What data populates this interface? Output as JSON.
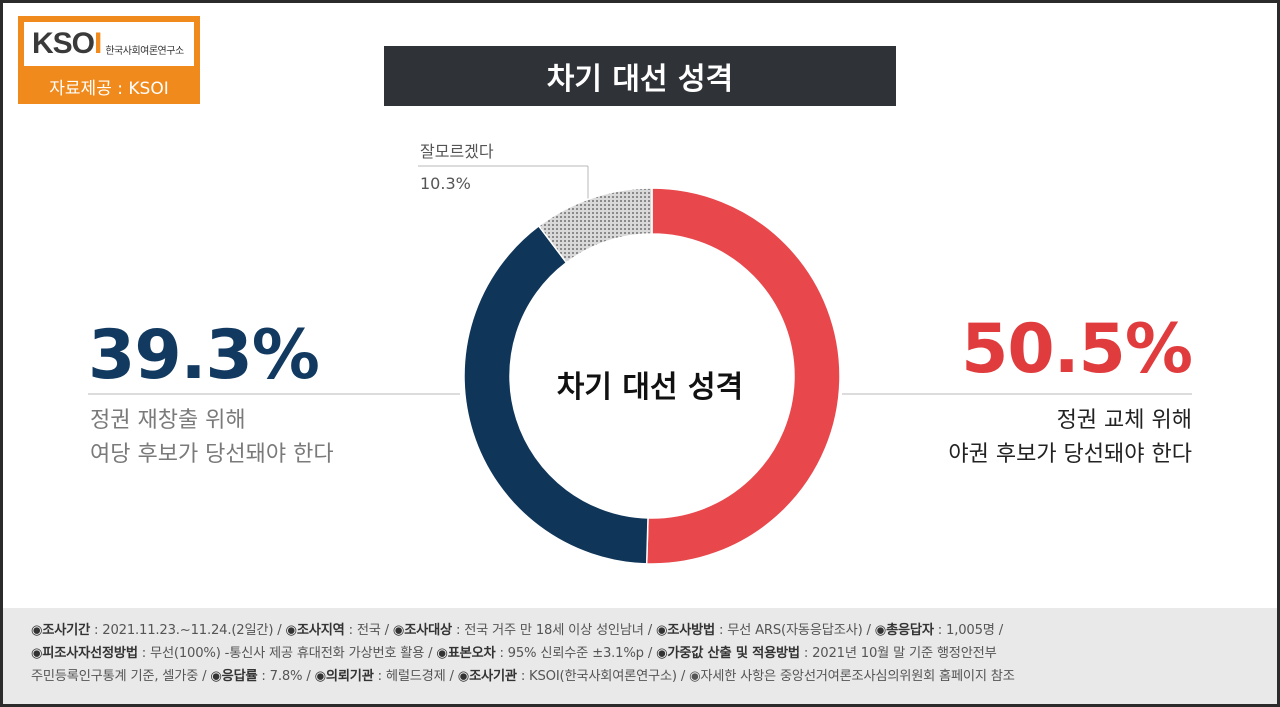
{
  "logo": {
    "brand": "KSOI",
    "org_name": "한국사회여론연구소",
    "source_label": "자료제공 : KSOI"
  },
  "title": "차기 대선 성격",
  "chart_data": {
    "type": "pie",
    "center_label": "차기 대선 성격",
    "slices": [
      {
        "label": "정권 교체 위해 야권 후보가 당선돼야 한다",
        "value": 50.5,
        "color": "#e8474b"
      },
      {
        "label": "정권 재창출 위해 여당 후보가 당선돼야 한다",
        "value": 39.3,
        "color": "#0f3559"
      },
      {
        "label": "잘모르겠다",
        "value": 10.3,
        "color": "#bdbdbd"
      }
    ],
    "labels": {
      "left_pct": "39.3%",
      "left_line1": "정권 재창출 위해",
      "left_line2": "여당 후보가 당선돼야 한다",
      "right_pct": "50.5%",
      "right_line1": "정권 교체 위해",
      "right_line2": "야권 후보가 당선돼야 한다",
      "unknown_label": "잘모르겠다",
      "unknown_pct": "10.3%"
    }
  },
  "footer": {
    "l1": [
      {
        "k": "◉조사기간",
        "v": " : 2021.11.23.~11.24.(2일간)  / "
      },
      {
        "k": "◉조사지역",
        "v": " : 전국 / "
      },
      {
        "k": "◉조사대상",
        "v": " : 전국 거주 만 18세 이상 성인남녀 / "
      },
      {
        "k": "◉조사방법",
        "v": " : 무선 ARS(자동응답조사) / "
      },
      {
        "k": "◉총응답자",
        "v": " : 1,005명 /"
      }
    ],
    "l2": [
      {
        "k": "◉피조사자선정방법",
        "v": " : 무선(100%) -통신사 제공 휴대전화 가상번호 활용 / "
      },
      {
        "k": "◉표본오차",
        "v": " : 95% 신뢰수준 ±3.1%p / "
      },
      {
        "k": "◉가중값 산출 및 적용방법",
        "v": " : 2021년 10월 말 기준 행정안전부"
      }
    ],
    "l3_pre": "주민등록인구통계 기준, 셀가중 / ",
    "l3": [
      {
        "k": "◉응답률",
        "v": " : 7.8% / "
      },
      {
        "k": "◉의뢰기관",
        "v": " : 헤럴드경제 / "
      },
      {
        "k": "◉조사기관",
        "v": " : KSOI(한국사회여론연구소) / "
      }
    ],
    "l3_post": "◉자세한 사항은 중앙선거여론조사심의위원회 홈페이지 참조"
  }
}
